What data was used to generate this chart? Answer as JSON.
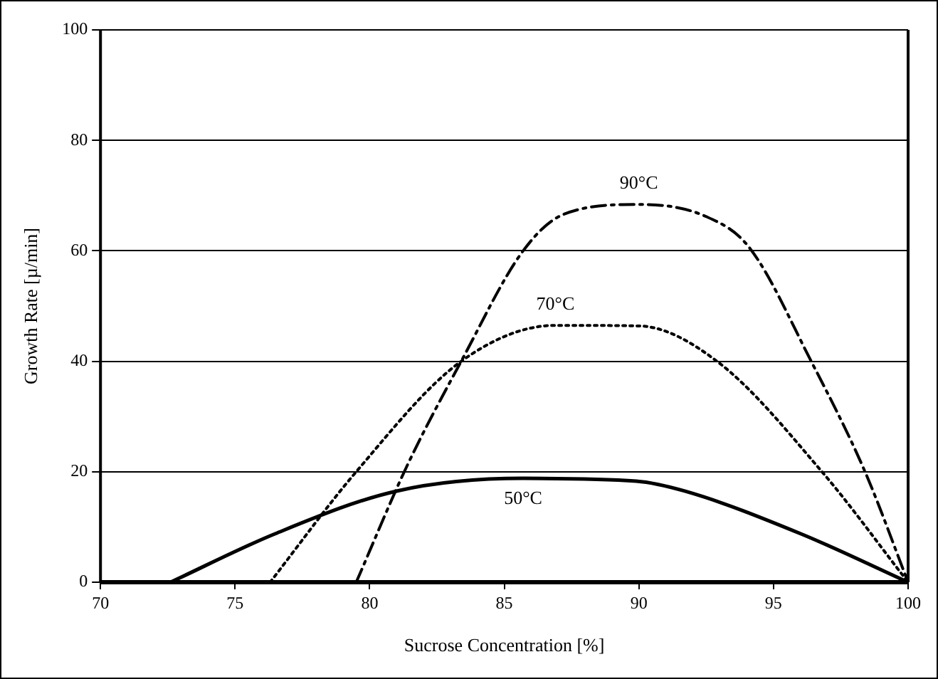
{
  "chart_data": {
    "type": "line",
    "xlabel": "Sucrose Concentration [%]",
    "ylabel": "Growth Rate [µ/min]",
    "xlim": [
      70,
      100
    ],
    "xticks": [
      70,
      75,
      80,
      85,
      90,
      95,
      100
    ],
    "ylim": [
      0,
      100
    ],
    "yticks": [
      0,
      20,
      40,
      60,
      80,
      100
    ],
    "grid": "y",
    "legend": false,
    "marker": "none",
    "series": [
      {
        "name": "50°C",
        "color": "#000000",
        "line_style": "solid",
        "x": [
          72.6,
          76.5,
          81.0,
          85.7,
          89.9,
          91.7,
          96.0,
          100
        ],
        "values": [
          0,
          8.8,
          16.5,
          18.8,
          18.3,
          16.5,
          8.8,
          0
        ]
      },
      {
        "name": "70°C",
        "color": "#000000",
        "line_style": "dotted",
        "x": [
          76.3,
          79.5,
          83.4,
          86.9,
          90.0,
          92.9,
          96.8,
          100
        ],
        "values": [
          0,
          20,
          40,
          46.5,
          46.4,
          40,
          20,
          0
        ]
      },
      {
        "name": "90°C",
        "color": "#000000",
        "line_style": "dashed",
        "x": [
          79.5,
          81.4,
          83.4,
          85.7,
          87.2,
          90.0,
          92.5,
          94.1,
          96.4,
          98.4,
          100
        ],
        "values": [
          0,
          21.2,
          40,
          60,
          66.6,
          68.4,
          66.2,
          60.6,
          40,
          20,
          0
        ]
      }
    ]
  }
}
